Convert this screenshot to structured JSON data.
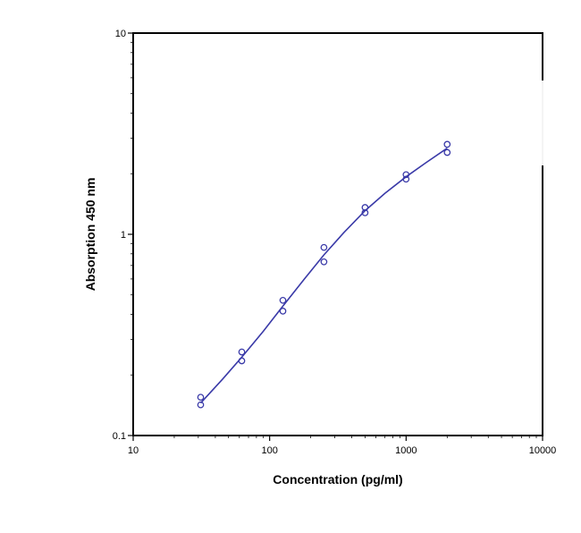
{
  "chart_data": {
    "type": "scatter",
    "title": "",
    "xlabel": "Concentration (pg/ml)",
    "ylabel": "Absorption 450 nm",
    "xscale": "log",
    "yscale": "log",
    "xlim": [
      10,
      10000
    ],
    "ylim": [
      0.1,
      10
    ],
    "x_ticks": [
      {
        "value": 10,
        "label": "10"
      },
      {
        "value": 100,
        "label": "100"
      },
      {
        "value": 1000,
        "label": "1000"
      },
      {
        "value": 10000,
        "label": "10000"
      }
    ],
    "y_ticks": [
      {
        "value": 0.1,
        "label": "0.1"
      },
      {
        "value": 1,
        "label": "1"
      },
      {
        "value": 10,
        "label": "10"
      }
    ],
    "grid": false,
    "series_color": "#3a3aa8",
    "points": [
      {
        "x": 31.25,
        "y": 0.155
      },
      {
        "x": 31.25,
        "y": 0.142
      },
      {
        "x": 62.5,
        "y": 0.26
      },
      {
        "x": 62.5,
        "y": 0.235
      },
      {
        "x": 125,
        "y": 0.47
      },
      {
        "x": 125,
        "y": 0.415
      },
      {
        "x": 250,
        "y": 0.86
      },
      {
        "x": 250,
        "y": 0.73
      },
      {
        "x": 500,
        "y": 1.36
      },
      {
        "x": 500,
        "y": 1.28
      },
      {
        "x": 1000,
        "y": 1.98
      },
      {
        "x": 1000,
        "y": 1.88
      },
      {
        "x": 2000,
        "y": 2.8
      },
      {
        "x": 2000,
        "y": 2.55
      }
    ],
    "fit_curve": [
      {
        "x": 31.25,
        "y": 0.145
      },
      {
        "x": 45,
        "y": 0.19
      },
      {
        "x": 62.5,
        "y": 0.245
      },
      {
        "x": 90,
        "y": 0.33
      },
      {
        "x": 125,
        "y": 0.44
      },
      {
        "x": 180,
        "y": 0.6
      },
      {
        "x": 250,
        "y": 0.79
      },
      {
        "x": 350,
        "y": 1.02
      },
      {
        "x": 500,
        "y": 1.31
      },
      {
        "x": 700,
        "y": 1.6
      },
      {
        "x": 1000,
        "y": 1.93
      },
      {
        "x": 1400,
        "y": 2.27
      },
      {
        "x": 2000,
        "y": 2.68
      }
    ]
  }
}
